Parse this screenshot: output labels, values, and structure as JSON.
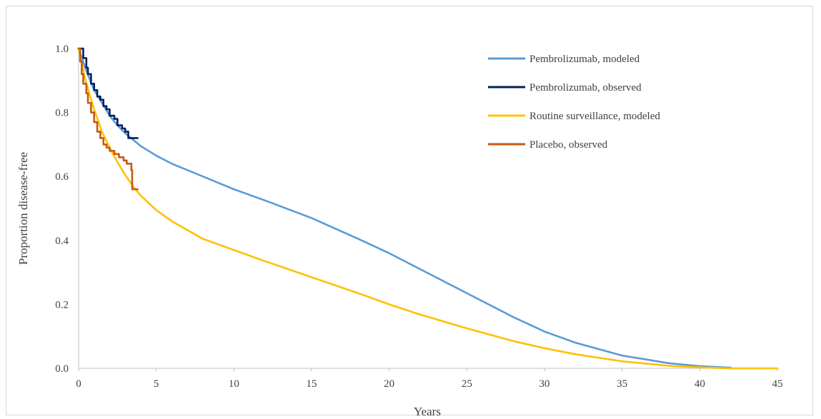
{
  "chart_data": {
    "type": "line",
    "title": "",
    "xlabel": "Years",
    "ylabel": "Proportion disease-free",
    "xlim": [
      0,
      45
    ],
    "ylim": [
      0,
      1
    ],
    "x_ticks": [
      "0",
      "5",
      "10",
      "15",
      "20",
      "25",
      "30",
      "35",
      "40",
      "45"
    ],
    "y_ticks": [
      "0.0",
      "0.2",
      "0.4",
      "0.6",
      "0.8",
      "1.0"
    ],
    "grid": false,
    "legend_position": "top-right",
    "series": [
      {
        "name": "Pembrolizumab, modeled",
        "color": "#5B9BD5",
        "style": "smooth",
        "points": [
          [
            0,
            1.0
          ],
          [
            0.5,
            0.93
          ],
          [
            1,
            0.87
          ],
          [
            1.5,
            0.83
          ],
          [
            2,
            0.79
          ],
          [
            2.5,
            0.76
          ],
          [
            3,
            0.735
          ],
          [
            3.5,
            0.715
          ],
          [
            4,
            0.695
          ],
          [
            5,
            0.665
          ],
          [
            6,
            0.64
          ],
          [
            8,
            0.6
          ],
          [
            10,
            0.56
          ],
          [
            12,
            0.525
          ],
          [
            15,
            0.47
          ],
          [
            18,
            0.405
          ],
          [
            20,
            0.36
          ],
          [
            22,
            0.31
          ],
          [
            25,
            0.235
          ],
          [
            28,
            0.16
          ],
          [
            30,
            0.115
          ],
          [
            32,
            0.08
          ],
          [
            35,
            0.04
          ],
          [
            38,
            0.016
          ],
          [
            40,
            0.007
          ],
          [
            42,
            0.002
          ]
        ]
      },
      {
        "name": "Pembrolizumab, observed",
        "color": "#002060",
        "style": "step",
        "points": [
          [
            0,
            1.0
          ],
          [
            0.2,
            1.0
          ],
          [
            0.3,
            0.97
          ],
          [
            0.5,
            0.94
          ],
          [
            0.6,
            0.92
          ],
          [
            0.8,
            0.89
          ],
          [
            1.0,
            0.87
          ],
          [
            1.2,
            0.85
          ],
          [
            1.4,
            0.84
          ],
          [
            1.6,
            0.82
          ],
          [
            1.8,
            0.81
          ],
          [
            2.0,
            0.79
          ],
          [
            2.3,
            0.78
          ],
          [
            2.5,
            0.76
          ],
          [
            2.8,
            0.75
          ],
          [
            3.0,
            0.74
          ],
          [
            3.2,
            0.72
          ],
          [
            3.8,
            0.72
          ]
        ]
      },
      {
        "name": "Routine surveillance, modeled",
        "color": "#FFC000",
        "style": "smooth",
        "points": [
          [
            0,
            1.0
          ],
          [
            0.5,
            0.89
          ],
          [
            1,
            0.81
          ],
          [
            1.5,
            0.74
          ],
          [
            2,
            0.69
          ],
          [
            2.5,
            0.645
          ],
          [
            3,
            0.605
          ],
          [
            3.5,
            0.57
          ],
          [
            4,
            0.54
          ],
          [
            5,
            0.495
          ],
          [
            6,
            0.46
          ],
          [
            8,
            0.405
          ],
          [
            10,
            0.37
          ],
          [
            12,
            0.335
          ],
          [
            15,
            0.285
          ],
          [
            18,
            0.235
          ],
          [
            20,
            0.2
          ],
          [
            22,
            0.168
          ],
          [
            25,
            0.125
          ],
          [
            28,
            0.085
          ],
          [
            30,
            0.063
          ],
          [
            32,
            0.044
          ],
          [
            35,
            0.022
          ],
          [
            38,
            0.008
          ],
          [
            40,
            0.003
          ],
          [
            42,
            0.0
          ],
          [
            45,
            0.0
          ]
        ]
      },
      {
        "name": "Placebo, observed",
        "color": "#C55A11",
        "style": "step",
        "points": [
          [
            0,
            1.0
          ],
          [
            0.1,
            0.96
          ],
          [
            0.2,
            0.92
          ],
          [
            0.3,
            0.89
          ],
          [
            0.5,
            0.86
          ],
          [
            0.6,
            0.83
          ],
          [
            0.8,
            0.8
          ],
          [
            1.0,
            0.77
          ],
          [
            1.2,
            0.74
          ],
          [
            1.4,
            0.72
          ],
          [
            1.6,
            0.7
          ],
          [
            1.8,
            0.69
          ],
          [
            2.0,
            0.68
          ],
          [
            2.3,
            0.67
          ],
          [
            2.6,
            0.66
          ],
          [
            2.9,
            0.65
          ],
          [
            3.1,
            0.64
          ],
          [
            3.4,
            0.62
          ],
          [
            3.45,
            0.56
          ],
          [
            3.8,
            0.56
          ]
        ]
      }
    ]
  }
}
